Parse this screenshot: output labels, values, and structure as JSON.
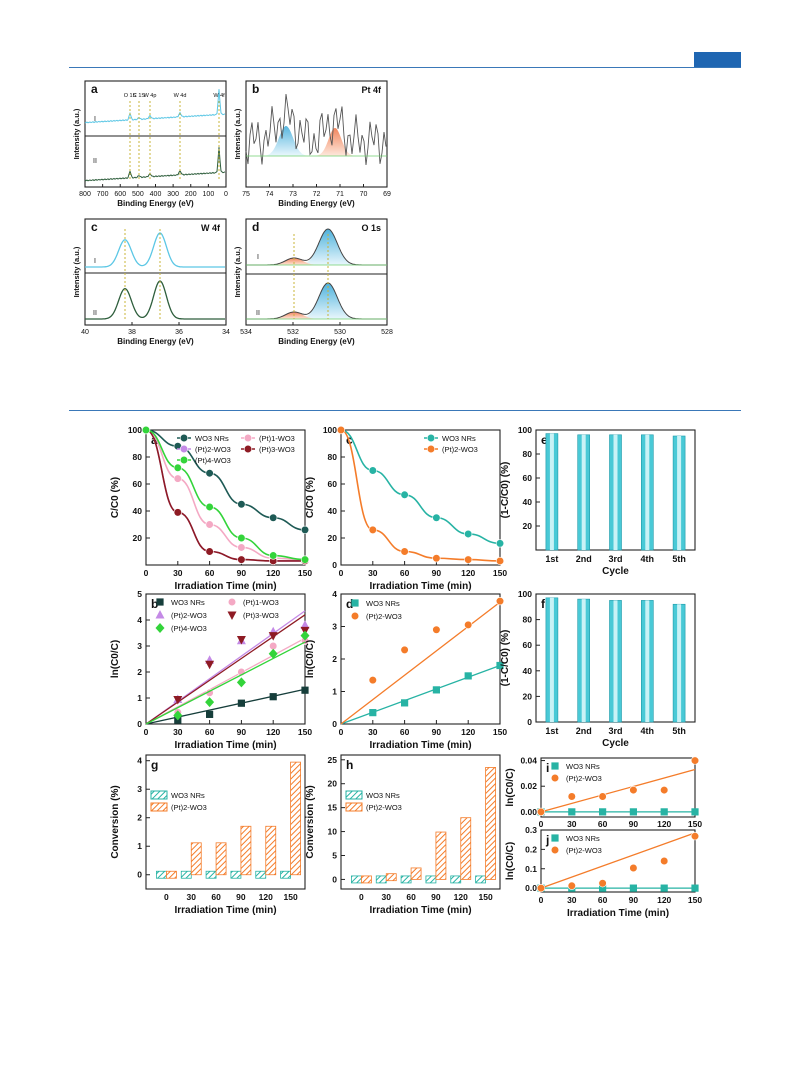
{
  "colors": {
    "teal": "#27b3a4",
    "dark_green": "#1e5a55",
    "pink": "#f4a9c4",
    "violet": "#c48ae6",
    "maroon": "#8e1b24",
    "green": "#33d43a",
    "orange": "#f47c2a",
    "dark_teal": "#163e3b",
    "light_blue": "#5cc7e5",
    "xps_dark": "#2e5e3c",
    "xps_grey": "#555555",
    "bar_cyan": "#49c9d6",
    "accent": "#1f66b2"
  },
  "xps": {
    "a": {
      "letter": "a",
      "xlabel": "Binding Energy (eV)",
      "ylabel": "Intensity (a.u.)",
      "xticks": [
        "800",
        "700",
        "600",
        "500",
        "400",
        "300",
        "200",
        "100",
        "0"
      ],
      "curves": [
        "I",
        "II"
      ],
      "peaks": [
        "O 1S",
        "C 1S",
        "W 4p",
        "W 4d",
        "W 4f"
      ]
    },
    "b": {
      "letter": "b",
      "title": "Pt 4f",
      "xlabel": "Binding Energy (eV)",
      "ylabel": "Intensity (a.u.)",
      "xticks": [
        "75",
        "74",
        "73",
        "72",
        "71",
        "70",
        "69"
      ]
    },
    "c": {
      "letter": "c",
      "title": "W 4f",
      "xlabel": "Binding Energy (eV)",
      "ylabel": "Intensity (a.u.)",
      "xticks": [
        "40",
        "38",
        "36",
        "34"
      ],
      "curves": [
        "I",
        "II"
      ]
    },
    "d": {
      "letter": "d",
      "title": "O 1s",
      "xlabel": "Binding Energy (eV)",
      "ylabel": "Intensity (a.u.)",
      "xticks": [
        "534",
        "532",
        "530",
        "528"
      ],
      "curves": [
        "I",
        "II"
      ]
    }
  },
  "chart_data": [
    {
      "id": "a",
      "type": "line",
      "xlabel": "Irradiation Time (min)",
      "ylabel": "C/C0 (%)",
      "xlim": [
        0,
        150
      ],
      "ylim": [
        0,
        100
      ],
      "x": [
        0,
        30,
        60,
        90,
        120,
        150
      ],
      "yticks": [
        20,
        40,
        60,
        80,
        100
      ],
      "legend_position": "top",
      "series": [
        {
          "name": "WO3 NRs",
          "color": "#1e5a55",
          "marker": "circle",
          "values": [
            100,
            88,
            68,
            45,
            35,
            26
          ]
        },
        {
          "name": "(Pt)1-WO3",
          "color": "#f4a9c4",
          "marker": "circle",
          "values": [
            100,
            64,
            30,
            13,
            5,
            4
          ]
        },
        {
          "name": "(Pt)2-WO3",
          "color": "#c48ae6",
          "marker": "circle",
          "values": [
            100,
            39,
            10,
            4,
            3,
            3
          ]
        },
        {
          "name": "(Pt)3-WO3",
          "color": "#8e1b24",
          "marker": "circle",
          "values": [
            100,
            39,
            10,
            4,
            3,
            3
          ]
        },
        {
          "name": "(Pt)4-WO3",
          "color": "#33d43a",
          "marker": "circle",
          "values": [
            100,
            72,
            43,
            20,
            7,
            4
          ]
        }
      ]
    },
    {
      "id": "c",
      "type": "line",
      "xlabel": "Irradiation Time (min)",
      "ylabel": "C/C0 (%)",
      "xlim": [
        0,
        150
      ],
      "ylim": [
        0,
        100
      ],
      "x": [
        0,
        30,
        60,
        90,
        120,
        150
      ],
      "yticks": [
        0,
        20,
        40,
        60,
        80,
        100
      ],
      "legend_position": "top-right",
      "series": [
        {
          "name": "WO3 NRs",
          "color": "#27b3a4",
          "marker": "circle",
          "values": [
            100,
            70,
            52,
            35,
            23,
            16
          ]
        },
        {
          "name": "(Pt)2-WO3",
          "color": "#f47c2a",
          "marker": "circle",
          "values": [
            100,
            26,
            10,
            5,
            4,
            3
          ]
        }
      ]
    },
    {
      "id": "e",
      "type": "bar",
      "xlabel": "Cycle",
      "ylabel": "(1-C/C0) (%)",
      "ylim": [
        0,
        100
      ],
      "yticks": [
        20,
        40,
        60,
        80,
        100
      ],
      "categories": [
        "1st",
        "2nd",
        "3rd",
        "4th",
        "5th"
      ],
      "values": [
        97,
        96,
        96,
        96,
        95
      ]
    },
    {
      "id": "b",
      "type": "scatter",
      "xlabel": "Irradiation Time (min)",
      "ylabel": "ln(C0/C)",
      "xlim": [
        0,
        150
      ],
      "ylim": [
        0,
        5
      ],
      "yticks": [
        0,
        1,
        2,
        3,
        4,
        5
      ],
      "x": [
        30,
        60,
        90,
        120,
        150
      ],
      "legend_position": "top-left",
      "series": [
        {
          "name": "WO3 NRs",
          "color": "#163e3b",
          "marker": "square",
          "values": [
            0.15,
            0.37,
            0.8,
            1.05,
            1.3
          ],
          "slope": 0.0089
        },
        {
          "name": "(Pt)1-WO3",
          "color": "#f4a9c4",
          "marker": "circle",
          "values": [
            0.45,
            1.2,
            2.0,
            3.0,
            3.2
          ],
          "slope": 0.022
        },
        {
          "name": "(Pt)2-WO3",
          "color": "#c48ae6",
          "marker": "triangle",
          "values": [
            0.94,
            2.45,
            3.2,
            3.55,
            3.8
          ],
          "slope": 0.029
        },
        {
          "name": "(Pt)3-WO3",
          "color": "#8e1b24",
          "marker": "triangle-down",
          "values": [
            0.94,
            2.3,
            3.25,
            3.4,
            3.6
          ],
          "slope": 0.028
        },
        {
          "name": "(Pt)4-WO3",
          "color": "#33d43a",
          "marker": "diamond",
          "values": [
            0.33,
            0.84,
            1.6,
            2.7,
            3.4
          ],
          "slope": 0.021
        }
      ]
    },
    {
      "id": "d",
      "type": "scatter",
      "xlabel": "Irradiation Time (min)",
      "ylabel": "ln(C0/C)",
      "xlim": [
        0,
        150
      ],
      "ylim": [
        0,
        4
      ],
      "yticks": [
        0,
        1,
        2,
        3,
        4
      ],
      "x": [
        30,
        60,
        90,
        120,
        150
      ],
      "legend_position": "top-left",
      "series": [
        {
          "name": "WO3 NRs",
          "color": "#27b3a4",
          "marker": "square",
          "values": [
            0.35,
            0.65,
            1.05,
            1.48,
            1.8
          ],
          "slope": 0.012
        },
        {
          "name": "(Pt)2-WO3",
          "color": "#f47c2a",
          "marker": "circle",
          "values": [
            1.35,
            2.28,
            2.9,
            3.05,
            3.78
          ],
          "slope": 0.025
        }
      ]
    },
    {
      "id": "f",
      "type": "bar",
      "xlabel": "Cycle",
      "ylabel": "(1-C/C0) (%)",
      "ylim": [
        0,
        100
      ],
      "yticks": [
        0,
        20,
        40,
        60,
        80,
        100
      ],
      "categories": [
        "1st",
        "2nd",
        "3rd",
        "4th",
        "5th"
      ],
      "values": [
        97,
        96,
        95,
        95,
        92
      ]
    },
    {
      "id": "g",
      "type": "bar",
      "xlabel": "Irradiation Time (min)",
      "ylabel": "Conversion (%)",
      "ylim": [
        -0.5,
        4.2
      ],
      "yticks": [
        0,
        1,
        2,
        3,
        4
      ],
      "categories": [
        "0",
        "30",
        "60",
        "90",
        "120",
        "150"
      ],
      "legend_position": "left",
      "series": [
        {
          "name": "WO3 NRs",
          "color": "#27b3a4",
          "values": [
            0,
            0,
            0,
            0,
            0,
            0
          ]
        },
        {
          "name": "(Pt)2-WO3",
          "color": "#f47c2a",
          "values": [
            0,
            1.12,
            1.12,
            1.7,
            1.7,
            3.95
          ]
        }
      ]
    },
    {
      "id": "h",
      "type": "bar",
      "xlabel": "Irradiation Time (min)",
      "ylabel": "Conversion (%)",
      "ylim": [
        -2,
        26
      ],
      "yticks": [
        0,
        5,
        10,
        15,
        20,
        25
      ],
      "categories": [
        "0",
        "30",
        "60",
        "90",
        "120",
        "150"
      ],
      "legend_position": "left",
      "series": [
        {
          "name": "WO3 NRs",
          "color": "#27b3a4",
          "values": [
            0,
            0,
            0,
            0,
            0,
            0
          ]
        },
        {
          "name": "(Pt)2-WO3",
          "color": "#f47c2a",
          "values": [
            0,
            1.2,
            2.4,
            9.9,
            12.9,
            23.4
          ]
        }
      ]
    },
    {
      "id": "i",
      "type": "scatter",
      "xlabel": "",
      "ylabel": "ln(C0/C)",
      "xlim": [
        0,
        150
      ],
      "ylim": [
        -0.004,
        0.042
      ],
      "yticks": [
        "0.00",
        "0.02",
        "0.04"
      ],
      "x": [
        0,
        30,
        60,
        90,
        120,
        150
      ],
      "series": [
        {
          "name": "WO3 NRs",
          "color": "#27b3a4",
          "marker": "square",
          "values": [
            0,
            0,
            0,
            0,
            0,
            0
          ],
          "slope": 0
        },
        {
          "name": "(Pt)2-WO3",
          "color": "#f47c2a",
          "marker": "circle",
          "values": [
            0,
            0.012,
            0.012,
            0.017,
            0.017,
            0.04
          ],
          "slope": 0.00022
        }
      ]
    },
    {
      "id": "j",
      "type": "scatter",
      "xlabel": "Irradiation Time (min)",
      "ylabel": "ln(C0/C)",
      "xlim": [
        0,
        150
      ],
      "ylim": [
        -0.02,
        0.3
      ],
      "yticks": [
        "0.0",
        "0.1",
        "0.2",
        "0.3"
      ],
      "x": [
        0,
        30,
        60,
        90,
        120,
        150
      ],
      "series": [
        {
          "name": "WO3 NRs",
          "color": "#27b3a4",
          "marker": "square",
          "values": [
            0,
            0,
            0,
            0,
            0,
            0
          ],
          "slope": 0
        },
        {
          "name": "(Pt)2-WO3",
          "color": "#f47c2a",
          "marker": "circle",
          "values": [
            0,
            0.012,
            0.025,
            0.104,
            0.14,
            0.268
          ],
          "slope": 0.0019
        }
      ]
    }
  ]
}
